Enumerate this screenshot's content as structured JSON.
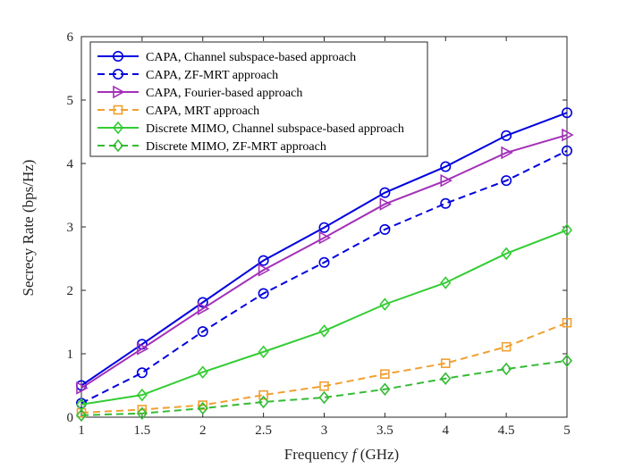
{
  "chart_data": {
    "type": "line",
    "x": [
      1,
      1.5,
      2,
      2.5,
      3,
      3.5,
      4,
      4.5,
      5
    ],
    "xlabel_parts": [
      "Frequency ",
      "f",
      " (GHz)"
    ],
    "ylabel": "Secrecy Rate (bps/Hz)",
    "xlim": [
      1,
      5
    ],
    "ylim": [
      0,
      6
    ],
    "xticks": [
      1,
      1.5,
      2,
      2.5,
      3,
      3.5,
      4,
      4.5,
      5
    ],
    "yticks": [
      0,
      1,
      2,
      3,
      4,
      5,
      6
    ],
    "xtick_labels": [
      "1",
      "1.5",
      "2",
      "2.5",
      "3",
      "3.5",
      "4",
      "4.5",
      "5"
    ],
    "ytick_labels": [
      "0",
      "1",
      "2",
      "3",
      "4",
      "5",
      "6"
    ],
    "grid": false,
    "legend_position": "top-left",
    "series": [
      {
        "name": "CAPA, Channel subspace-based approach",
        "color": "#0000e0",
        "dash": "solid",
        "marker": "circle",
        "values": [
          0.5,
          1.15,
          1.81,
          2.47,
          2.99,
          3.54,
          3.95,
          4.44,
          4.8
        ]
      },
      {
        "name": "CAPA, ZF-MRT approach",
        "color": "#0000e0",
        "dash": "dashed",
        "marker": "circle",
        "values": [
          0.22,
          0.7,
          1.35,
          1.95,
          2.44,
          2.96,
          3.37,
          3.73,
          4.2
        ]
      },
      {
        "name": "CAPA, Fourier-based approach",
        "color": "#a330b8",
        "dash": "solid",
        "marker": "triangle-right",
        "values": [
          0.46,
          1.08,
          1.71,
          2.32,
          2.83,
          3.36,
          3.73,
          4.17,
          4.45
        ]
      },
      {
        "name": "CAPA, MRT approach",
        "color": "#f0a030",
        "dash": "dashed",
        "marker": "square",
        "values": [
          0.07,
          0.12,
          0.19,
          0.35,
          0.49,
          0.68,
          0.85,
          1.11,
          1.49
        ]
      },
      {
        "name": "Discrete MIMO, Channel subspace-based approach",
        "color": "#33cc33",
        "dash": "solid",
        "marker": "diamond",
        "values": [
          0.2,
          0.35,
          0.71,
          1.03,
          1.36,
          1.78,
          2.12,
          2.58,
          2.95
        ]
      },
      {
        "name": "Discrete MIMO, ZF-MRT approach",
        "color": "#33bb33",
        "dash": "dashed",
        "marker": "diamond",
        "values": [
          0.03,
          0.06,
          0.14,
          0.24,
          0.31,
          0.44,
          0.61,
          0.76,
          0.89
        ]
      }
    ]
  }
}
